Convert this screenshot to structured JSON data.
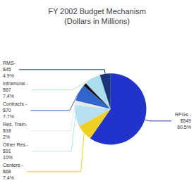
{
  "chart_data": {
    "type": "pie",
    "title": "FY 2002 Budget Mechanism\n(Dollars in Millions)",
    "categories": [
      "RPGs -\n$549\n60.5%",
      "Centers -\n$68\n7.4%",
      "Other Res.-\n$91\n10%",
      "Res. Train-\n$18\n2%",
      "Contracts -\n$70\n7.7%",
      null,
      "Intramural -\n$67\n7.4%",
      "RMS-\n$45\n4.9%"
    ],
    "values": [
      60.5,
      7.4,
      10.0,
      2.0,
      7.7,
      1.5,
      7.4,
      4.9
    ],
    "colors": [
      "#2233cc",
      "#f0d020",
      "#b8e0f0",
      "#e8e8e8",
      "#3366cc",
      "#111111",
      "#aaddee",
      "#1a3575"
    ]
  }
}
